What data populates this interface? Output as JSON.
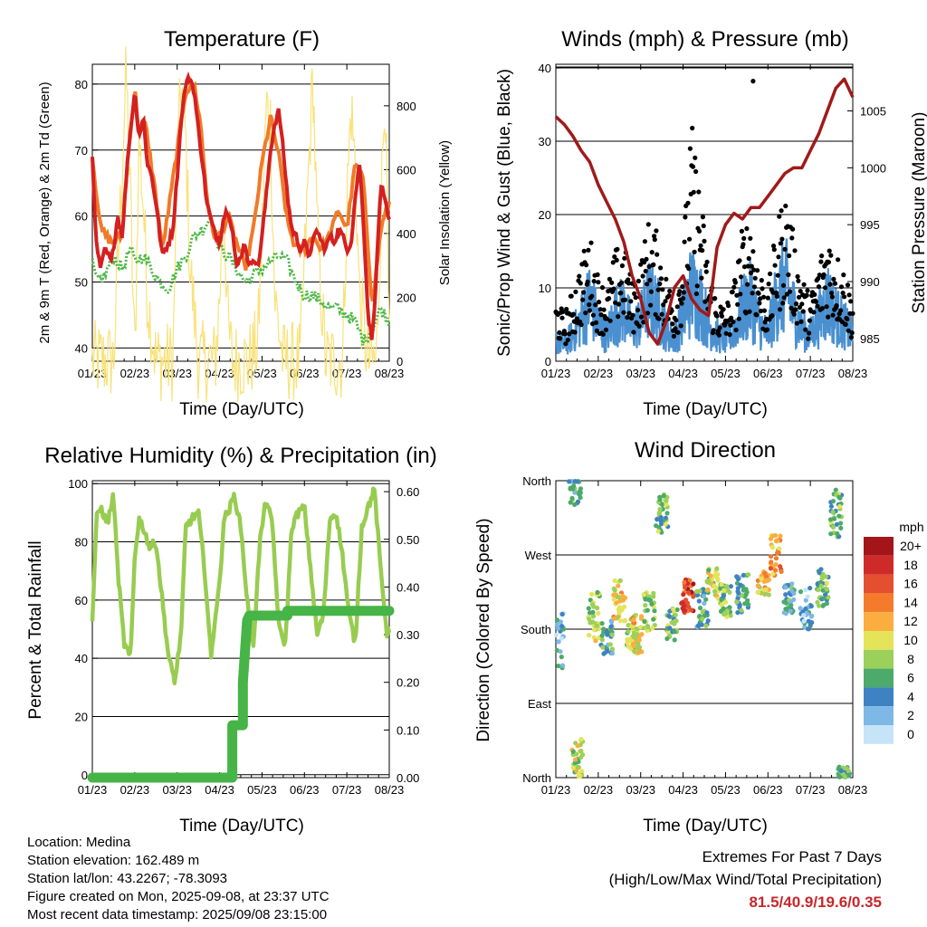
{
  "panels": {
    "temperature": {
      "title": "Temperature (F)",
      "ylabel_left": "2m & 9m T (Red, Orange) & 2m Td (Green)",
      "ylabel_right": "Solar Insolation (Yellow)",
      "xlabel": "Time (Day/UTC)"
    },
    "winds": {
      "title": "Winds (mph) & Pressure (mb)",
      "ylabel_left": "Sonic/Prop Wind & Gust (Blue, Black)",
      "ylabel_right": "Station Pressure (Maroon)",
      "xlabel": "Time (Day/UTC)"
    },
    "humidity": {
      "title": "Relative Humidity (%) & Precipitation (in)",
      "ylabel_left": "Percent & Total Rainfall",
      "xlabel": "Time (Day/UTC)"
    },
    "wind_direction": {
      "title": "Wind Direction",
      "ylabel_left": "Direction (Colored By Speed)",
      "xlabel": "Time (Day/UTC)",
      "legend_title": "mph"
    }
  },
  "info": {
    "location": "Location: Medina",
    "elevation": "Station elevation: 162.489 m",
    "latlon": "Station lat/lon: 43.2267; -78.3093",
    "created": "Figure created on Mon, 2025-09-08, at 23:37 UTC",
    "recent": "Most recent data timestamp: 2025/09/08 23:15:00"
  },
  "extremes": {
    "line1": "Extremes For Past 7 Days",
    "line2": "(High/Low/Max Wind/Total Precipitation)",
    "values": "81.5/40.9/19.6/0.35"
  },
  "colors": {
    "temp_2m": "#d42020",
    "temp_9m": "#f07a28",
    "dewpoint": "#4db845",
    "solar": "#f8e27a",
    "gust": "#000000",
    "wind": "#4a90d0",
    "pressure": "#a01a1a",
    "rh": "#98cc50",
    "precip": "#46b446"
  },
  "chart_data": [
    {
      "type": "line",
      "id": "temperature",
      "x_ticks": [
        "01/23",
        "02/23",
        "03/23",
        "04/23",
        "05/23",
        "06/23",
        "07/23",
        "08/23"
      ],
      "ylim": [
        38,
        83
      ],
      "y_ticks": [
        40,
        50,
        60,
        70,
        80
      ],
      "y2lim": [
        0,
        930
      ],
      "y2_ticks": [
        0,
        200,
        400,
        600,
        800
      ],
      "grid": true,
      "series": [
        {
          "key": "t9m",
          "x": [
            0,
            0.2,
            0.45,
            0.7,
            0.85,
            1.0,
            1.1,
            1.25,
            1.5,
            1.65,
            1.8,
            2.0,
            2.2,
            2.4,
            2.55,
            2.7,
            2.85,
            3.0,
            3.2,
            3.4,
            3.6,
            3.8,
            4.0,
            4.2,
            4.4,
            4.6,
            4.8,
            5.0,
            5.2,
            5.4,
            5.6,
            5.8,
            6.0,
            6.2,
            6.4,
            6.6,
            6.8,
            7.0
          ],
          "y": [
            69,
            58,
            56,
            57,
            70,
            79,
            73,
            74,
            63,
            55,
            61,
            70,
            79,
            80,
            74,
            63,
            57,
            57,
            60,
            56,
            52,
            58,
            68,
            75,
            69,
            59,
            55,
            55,
            57,
            55,
            57,
            61,
            58,
            68,
            65,
            46,
            58,
            62
          ]
        },
        {
          "key": "t2m",
          "x": [
            0,
            0.05,
            0.1,
            0.2,
            0.3,
            0.45,
            0.6,
            0.7,
            0.85,
            1.0,
            1.1,
            1.2,
            1.3,
            1.4,
            1.5,
            1.65,
            1.8,
            1.9,
            2.0,
            2.1,
            2.2,
            2.3,
            2.4,
            2.5,
            2.6,
            2.7,
            2.85,
            3.0,
            3.1,
            3.2,
            3.3,
            3.4,
            3.5,
            3.6,
            3.7,
            3.8,
            3.9,
            4.0,
            4.1,
            4.2,
            4.3,
            4.4,
            4.5,
            4.6,
            4.7,
            4.8,
            4.9,
            5.0,
            5.1,
            5.2,
            5.3,
            5.4,
            5.5,
            5.6,
            5.7,
            5.8,
            5.9,
            6.0,
            6.1,
            6.2,
            6.3,
            6.4,
            6.5,
            6.6,
            6.7,
            6.8,
            6.9,
            7.0
          ],
          "y": [
            69,
            62,
            55,
            52,
            55,
            53,
            60,
            57,
            70,
            79,
            72,
            75,
            68,
            66,
            62,
            54,
            56,
            58,
            66,
            75,
            80,
            81,
            79,
            73,
            68,
            62,
            58,
            56,
            60,
            61,
            58,
            52,
            54,
            56,
            52,
            54,
            52,
            57,
            63,
            70,
            74,
            76,
            70,
            63,
            58,
            57,
            55,
            56,
            54,
            56,
            58,
            56,
            55,
            57,
            56,
            58,
            57,
            55,
            56,
            63,
            68,
            58,
            45,
            41,
            52,
            65,
            62,
            59
          ]
        },
        {
          "key": "td2m",
          "x": [
            0,
            0.1,
            0.3,
            0.5,
            0.7,
            0.9,
            1.0,
            1.2,
            1.4,
            1.6,
            1.8,
            2.0,
            2.2,
            2.4,
            2.6,
            2.8,
            3.0,
            3.2,
            3.4,
            3.6,
            3.8,
            4.0,
            4.2,
            4.4,
            4.6,
            4.8,
            5.0,
            5.2,
            5.4,
            5.6,
            5.8,
            6.0,
            6.2,
            6.4,
            6.6,
            6.8,
            7.0
          ],
          "y": [
            53,
            50,
            51,
            54,
            52,
            55,
            53,
            54,
            52,
            50,
            49,
            52,
            54,
            57,
            58,
            60,
            55,
            54,
            52,
            50,
            51,
            52,
            53,
            54,
            53,
            50,
            48,
            48,
            47,
            46,
            46,
            45,
            44,
            41,
            43,
            46,
            44
          ]
        },
        {
          "key": "solar",
          "x": [
            0,
            0.3,
            0.5,
            0.6,
            0.7,
            0.8,
            0.9,
            1.0,
            1.1,
            1.2,
            1.3,
            1.5,
            1.7,
            1.9,
            2.0,
            2.1,
            2.2,
            2.3,
            2.5,
            2.7,
            2.9,
            3.0,
            3.1,
            3.2,
            3.3,
            3.5,
            3.7,
            3.9,
            4.0,
            4.1,
            4.2,
            4.3,
            4.5,
            4.7,
            4.9,
            5.0,
            5.1,
            5.2,
            5.3,
            5.5,
            5.7,
            5.9,
            6.0,
            6.1,
            6.2,
            6.3,
            6.5,
            6.7,
            6.9,
            7.0
          ],
          "y": [
            0,
            0,
            0,
            300,
            600,
            900,
            500,
            0,
            700,
            500,
            200,
            0,
            0,
            0,
            600,
            880,
            700,
            300,
            0,
            0,
            0,
            200,
            500,
            100,
            0,
            0,
            0,
            50,
            400,
            800,
            750,
            200,
            0,
            0,
            0,
            300,
            600,
            900,
            400,
            0,
            0,
            0,
            500,
            800,
            600,
            200,
            0,
            0,
            900,
            0
          ]
        }
      ]
    },
    {
      "type": "scatter",
      "id": "winds",
      "x_ticks": [
        "01/23",
        "02/23",
        "03/23",
        "04/23",
        "05/23",
        "06/23",
        "07/23",
        "08/23"
      ],
      "ylim": [
        0,
        40.5
      ],
      "y_ticks": [
        0,
        10,
        20,
        30,
        40
      ],
      "y2lim": [
        983,
        1009.1
      ],
      "y2_ticks": [
        985,
        990,
        995,
        1000,
        1005
      ],
      "grid": true,
      "pressure": {
        "x": [
          0,
          0.2,
          0.4,
          0.6,
          0.8,
          1.0,
          1.2,
          1.4,
          1.6,
          1.8,
          2.0,
          2.2,
          2.4,
          2.6,
          2.8,
          3.0,
          3.2,
          3.4,
          3.6,
          3.8,
          4.0,
          4.2,
          4.4,
          4.6,
          4.8,
          5.0,
          5.2,
          5.4,
          5.6,
          5.8,
          6.0,
          6.2,
          6.4,
          6.6,
          6.8,
          7.0
        ],
        "y": [
          1004.5,
          1003.8,
          1002.8,
          1001.5,
          1000.5,
          998.5,
          997,
          995.5,
          993.5,
          990.5,
          988.5,
          985.5,
          984.5,
          986.5,
          989.5,
          990.5,
          988.5,
          987.5,
          987,
          993,
          995,
          996,
          995.5,
          996.5,
          996.5,
          997.5,
          998.5,
          999.5,
          1000,
          1000,
          1001.5,
          1003,
          1005,
          1007,
          1007.8,
          1006.2
        ]
      },
      "wind_envelope": {
        "x": [
          0,
          0.2,
          0.4,
          0.6,
          0.8,
          1.0,
          1.2,
          1.4,
          1.6,
          1.8,
          2.0,
          2.2,
          2.4,
          2.6,
          2.8,
          3.0,
          3.2,
          3.4,
          3.6,
          3.8,
          4.0,
          4.2,
          4.4,
          4.6,
          4.8,
          5.0,
          5.2,
          5.4,
          5.6,
          5.8,
          6.0,
          6.2,
          6.4,
          6.6,
          6.8,
          7.0
        ],
        "y": [
          4,
          3,
          5,
          8,
          12,
          7,
          5,
          9,
          10,
          6,
          8,
          12,
          10,
          6,
          4,
          9,
          14,
          12,
          7,
          5,
          4,
          6,
          10,
          12,
          7,
          5,
          12,
          15,
          10,
          6,
          5,
          8,
          12,
          9,
          7,
          5
        ]
      },
      "gust_envelope": {
        "x": [
          0,
          0.2,
          0.4,
          0.6,
          0.8,
          1.0,
          1.2,
          1.4,
          1.6,
          1.8,
          2.0,
          2.2,
          2.4,
          2.6,
          2.8,
          3.0,
          3.2,
          3.4,
          3.6,
          3.8,
          4.0,
          4.2,
          4.4,
          4.6,
          4.8,
          5.0,
          5.2,
          5.4,
          5.6,
          5.8,
          6.0,
          6.2,
          6.4,
          6.6,
          6.8,
          7.0
        ],
        "y": [
          8,
          6,
          9,
          13,
          16,
          11,
          9,
          14,
          15,
          10,
          13,
          18,
          16,
          11,
          8,
          15,
          30,
          22,
          12,
          8,
          7,
          10,
          17,
          19,
          12,
          9,
          17,
          22,
          16,
          11,
          8,
          13,
          17,
          14,
          12,
          8
        ]
      },
      "gust_max": 38.2
    },
    {
      "type": "line",
      "id": "humidity",
      "x_ticks": [
        "01/23",
        "02/23",
        "03/23",
        "04/23",
        "05/23",
        "06/23",
        "07/23",
        "08/23"
      ],
      "ylim": [
        -1,
        101
      ],
      "y_ticks": [
        0,
        20,
        40,
        60,
        80,
        100
      ],
      "y2lim": [
        0,
        0.623
      ],
      "y2_ticks": [
        "0.00",
        "0.10",
        "0.20",
        "0.30",
        "0.40",
        "0.50",
        "0.60"
      ],
      "grid": true,
      "series": [
        {
          "key": "rh",
          "x": [
            0,
            0.1,
            0.2,
            0.35,
            0.5,
            0.6,
            0.75,
            0.9,
            1.0,
            1.1,
            1.2,
            1.35,
            1.5,
            1.65,
            1.8,
            1.95,
            2.1,
            2.2,
            2.35,
            2.5,
            2.65,
            2.8,
            2.9,
            3.0,
            3.1,
            3.2,
            3.35,
            3.5,
            3.65,
            3.8,
            3.95,
            4.1,
            4.25,
            4.4,
            4.55,
            4.7,
            4.85,
            5.0,
            5.15,
            5.3,
            5.45,
            5.6,
            5.75,
            5.9,
            6.05,
            6.2,
            6.35,
            6.5,
            6.65,
            6.8,
            6.95,
            7.0
          ],
          "y": [
            53,
            88,
            92,
            86,
            96,
            70,
            45,
            40,
            75,
            88,
            85,
            78,
            80,
            60,
            40,
            32,
            50,
            85,
            88,
            90,
            70,
            40,
            55,
            65,
            88,
            90,
            96,
            85,
            60,
            45,
            80,
            95,
            85,
            50,
            45,
            85,
            90,
            92,
            70,
            48,
            55,
            88,
            90,
            75,
            55,
            45,
            85,
            92,
            98,
            70,
            48,
            50
          ]
        },
        {
          "key": "precip",
          "x": [
            0,
            3.3,
            3.3,
            3.55,
            3.55,
            3.65,
            3.7,
            4.6,
            4.6,
            7.0
          ],
          "y": [
            0,
            0,
            0.11,
            0.11,
            0.2,
            0.33,
            0.34,
            0.34,
            0.35,
            0.35
          ]
        }
      ]
    },
    {
      "type": "scatter",
      "id": "wind_direction",
      "x_ticks": [
        "01/23",
        "02/23",
        "03/23",
        "04/23",
        "05/23",
        "06/23",
        "07/23",
        "08/23"
      ],
      "y_ticks": [
        "North",
        "East",
        "South",
        "West",
        "North"
      ],
      "ylim": [
        0,
        360
      ],
      "grid": true,
      "legend": {
        "title": "mph",
        "labels": [
          "20+",
          "18",
          "16",
          "14",
          "12",
          "10",
          "8",
          "6",
          "4",
          "2",
          "0"
        ],
        "colors": [
          "#a31519",
          "#cf2a2a",
          "#e44f30",
          "#f47b2c",
          "#fbad40",
          "#e4e45a",
          "#9bd05a",
          "#4caa6a",
          "#3f82c2",
          "#7db8e6",
          "#c6e4f7"
        ]
      },
      "clusters": [
        {
          "x": 0.05,
          "y": 165,
          "spread": 35,
          "speed": 3
        },
        {
          "x": 0.45,
          "y": 350,
          "spread": 20,
          "speed": 4
        },
        {
          "x": 0.5,
          "y": 25,
          "spread": 25,
          "speed": 8
        },
        {
          "x": 0.9,
          "y": 195,
          "spread": 30,
          "speed": 8
        },
        {
          "x": 1.2,
          "y": 170,
          "spread": 20,
          "speed": 4
        },
        {
          "x": 1.5,
          "y": 215,
          "spread": 25,
          "speed": 10
        },
        {
          "x": 1.8,
          "y": 170,
          "spread": 15,
          "speed": 8
        },
        {
          "x": 1.9,
          "y": 175,
          "spread": 25,
          "speed": 10
        },
        {
          "x": 2.2,
          "y": 200,
          "spread": 25,
          "speed": 8
        },
        {
          "x": 2.5,
          "y": 320,
          "spread": 25,
          "speed": 7
        },
        {
          "x": 2.75,
          "y": 185,
          "spread": 20,
          "speed": 6
        },
        {
          "x": 3.1,
          "y": 220,
          "spread": 20,
          "speed": 16
        },
        {
          "x": 3.45,
          "y": 205,
          "spread": 25,
          "speed": 5
        },
        {
          "x": 3.7,
          "y": 235,
          "spread": 20,
          "speed": 9
        },
        {
          "x": 4.0,
          "y": 215,
          "spread": 20,
          "speed": 7
        },
        {
          "x": 4.4,
          "y": 225,
          "spread": 25,
          "speed": 5
        },
        {
          "x": 4.9,
          "y": 235,
          "spread": 15,
          "speed": 10
        },
        {
          "x": 5.2,
          "y": 270,
          "spread": 25,
          "speed": 12
        },
        {
          "x": 5.5,
          "y": 215,
          "spread": 20,
          "speed": 4
        },
        {
          "x": 5.9,
          "y": 205,
          "spread": 25,
          "speed": 3
        },
        {
          "x": 6.3,
          "y": 230,
          "spread": 25,
          "speed": 6
        },
        {
          "x": 6.6,
          "y": 320,
          "spread": 30,
          "speed": 6
        },
        {
          "x": 6.8,
          "y": 5,
          "spread": 8,
          "speed": 5
        }
      ]
    }
  ]
}
